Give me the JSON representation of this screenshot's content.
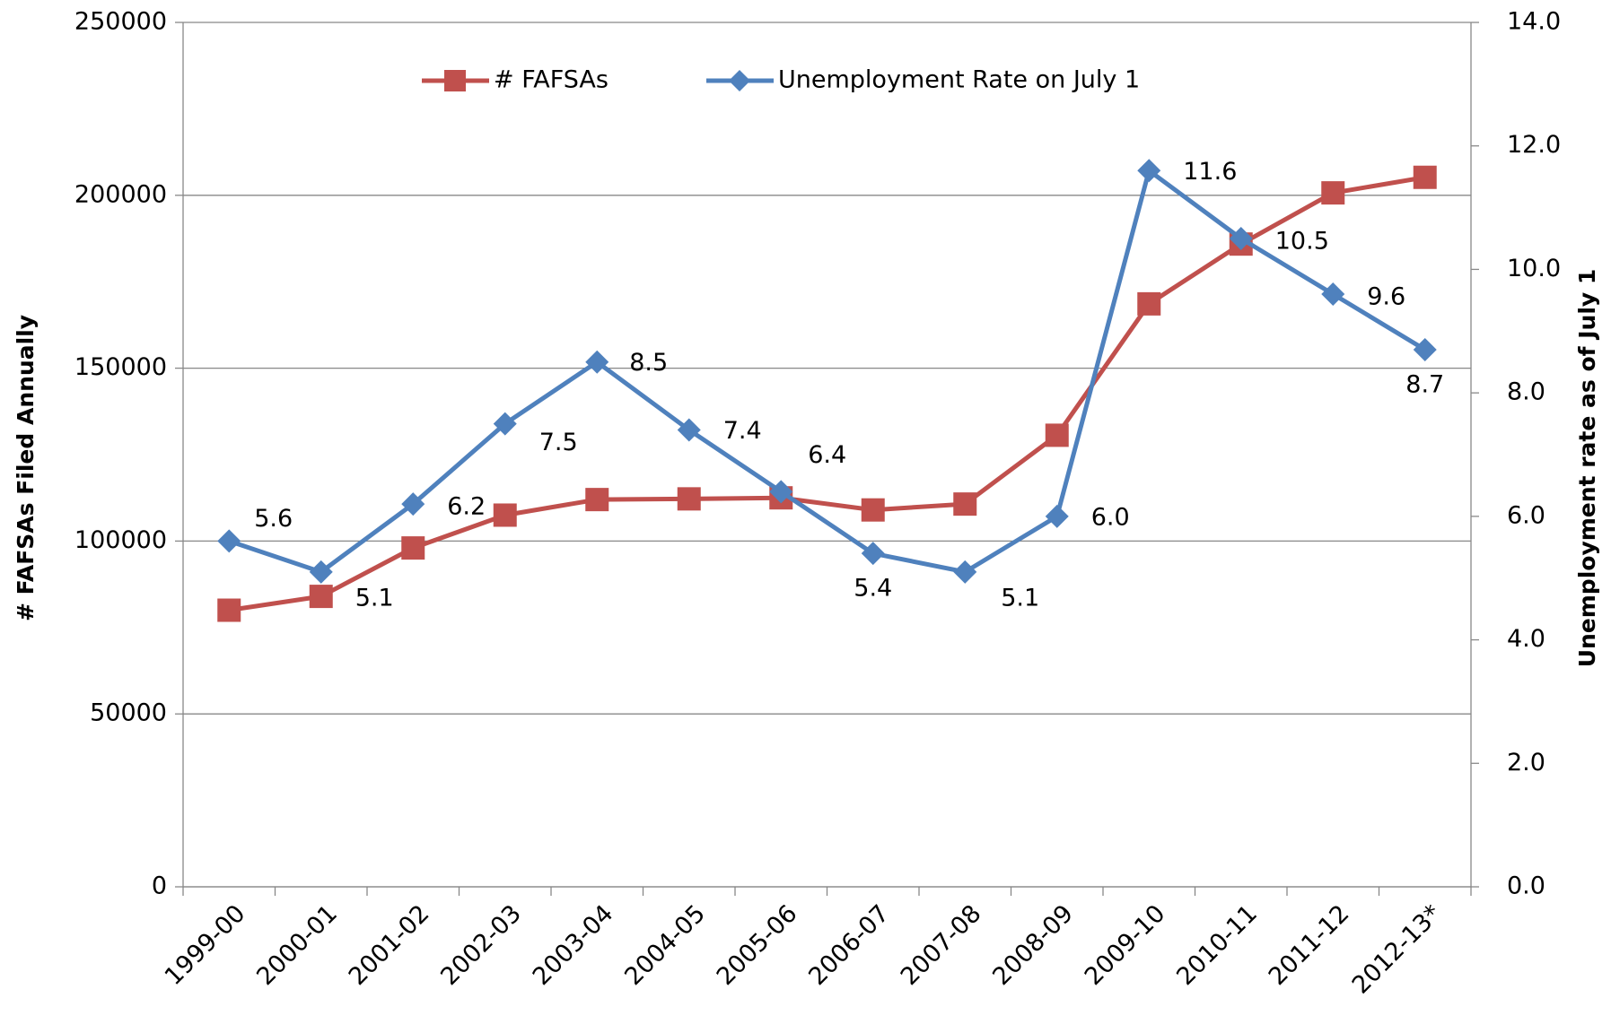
{
  "chart_data": {
    "type": "line",
    "categories": [
      "1999-00",
      "2000-01",
      "2001-02",
      "2002-03",
      "2003-04",
      "2004-05",
      "2005-06",
      "2006-07",
      "2007-08",
      "2008-09",
      "2009-10",
      "2010-11",
      "2011-12",
      "2012-13*"
    ],
    "ylabel": "# FAFSAs Filed Annually",
    "y2label": "Unemployment rate as of July 1",
    "ylim": [
      0,
      250000
    ],
    "yticks": [
      0,
      50000,
      100000,
      150000,
      200000,
      250000
    ],
    "y2lim": [
      0,
      14
    ],
    "y2ticks": [
      {
        "value": 0,
        "label": "0.0"
      },
      {
        "value": 2,
        "label": "2.0"
      },
      {
        "value": 4,
        "label": "4.0"
      },
      {
        "value": 6,
        "label": "6.0"
      },
      {
        "value": 8,
        "label": "8.0"
      },
      {
        "value": 10,
        "label": "10.0"
      },
      {
        "value": 12,
        "label": "12.0"
      },
      {
        "value": 14,
        "label": "14.0"
      }
    ],
    "grid": true,
    "legend": "top",
    "series": [
      {
        "name": "# FAFSAs",
        "color": "#c0504d",
        "marker": "square",
        "values": [
          80000,
          84000,
          98000,
          107500,
          112000,
          112200,
          112500,
          109000,
          110700,
          130600,
          168600,
          185900,
          200700,
          205200
        ]
      },
      {
        "name": "Unemployment Rate on July 1",
        "color": "#4f81bd",
        "marker": "diamond",
        "axis": "y2",
        "values": [
          5.6,
          5.1,
          6.2,
          7.5,
          8.5,
          7.4,
          6.4,
          5.4,
          5.1,
          6,
          11.6,
          10.5,
          9.6,
          8.7
        ],
        "value_labels": [
          "5.6",
          "5.1",
          "6.2",
          "7.5",
          "8.5",
          "7.4",
          "6.4",
          "5.4",
          "5.1",
          "6.0",
          "11.6",
          "10.5",
          "9.6",
          "8.7"
        ]
      }
    ]
  }
}
